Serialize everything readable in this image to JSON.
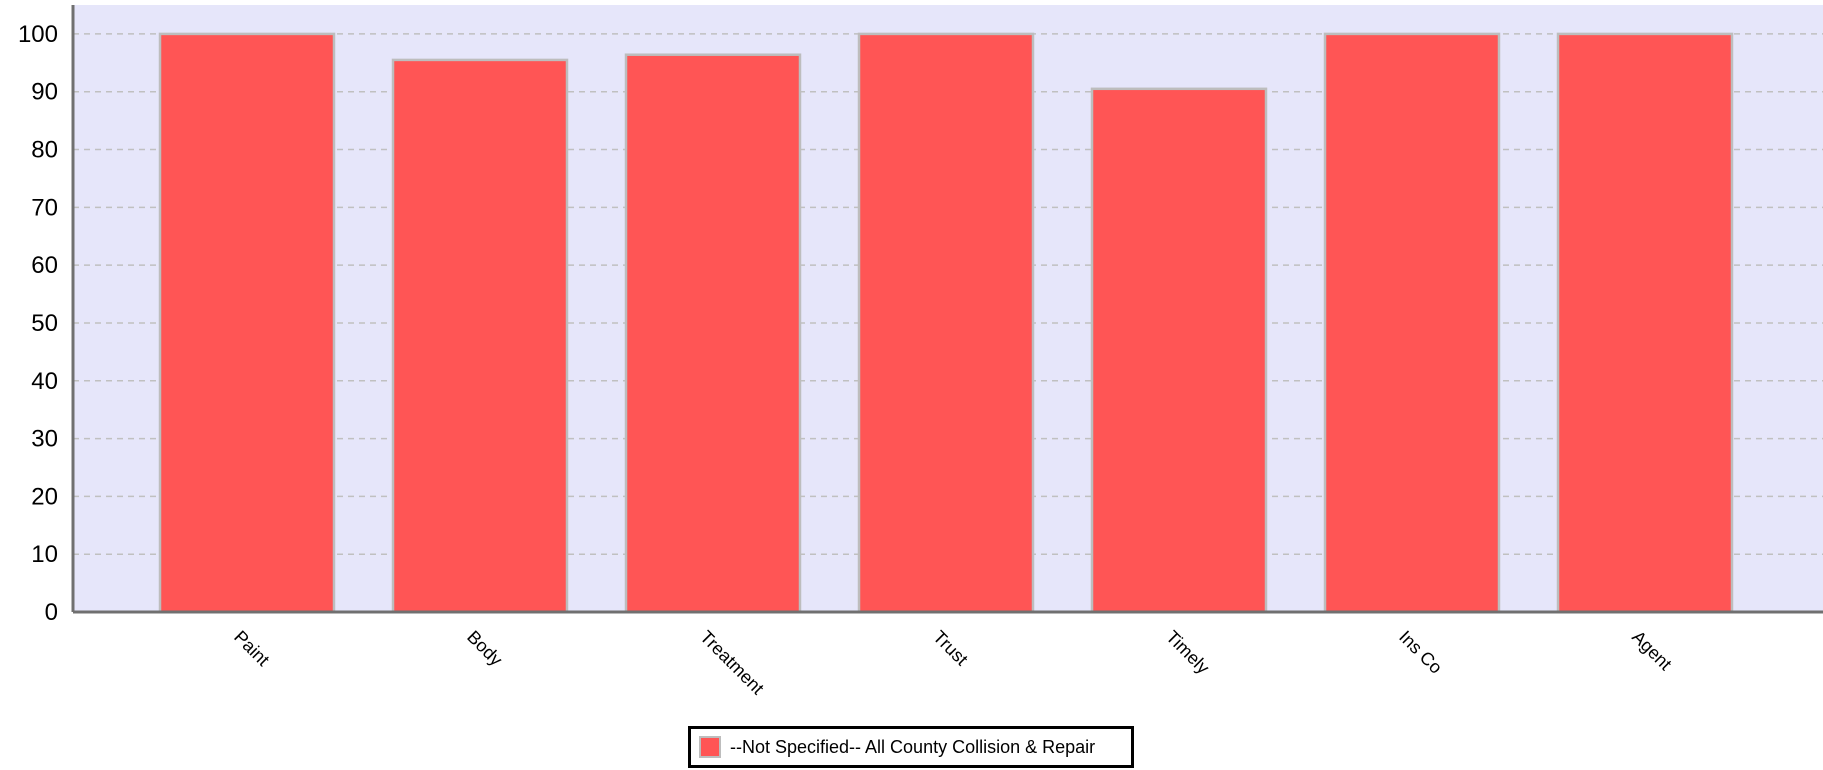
{
  "chart_data": {
    "type": "bar",
    "categories": [
      "Paint",
      "Body",
      "Treatment",
      "Trust",
      "Timely",
      "Ins Co",
      "Agent"
    ],
    "series": [
      {
        "name": "--Not Specified-- All County Collision & Repair",
        "values": [
          100,
          95.5,
          96.4,
          100,
          90.5,
          100,
          100
        ]
      }
    ],
    "yticks": [
      "0",
      "10",
      "20",
      "30",
      "40",
      "50",
      "60",
      "70",
      "80",
      "90",
      "100"
    ],
    "ylim": [
      0,
      105
    ],
    "grid": true,
    "grid_style": "dashed",
    "legend_position": "bottom-center",
    "colors": {
      "bar_fill": "#FF5555",
      "bar_stroke": "#BDBDBD",
      "plot_background": "#E6E6FA",
      "grid": "#C0C0C0",
      "axis": "#707070"
    }
  }
}
